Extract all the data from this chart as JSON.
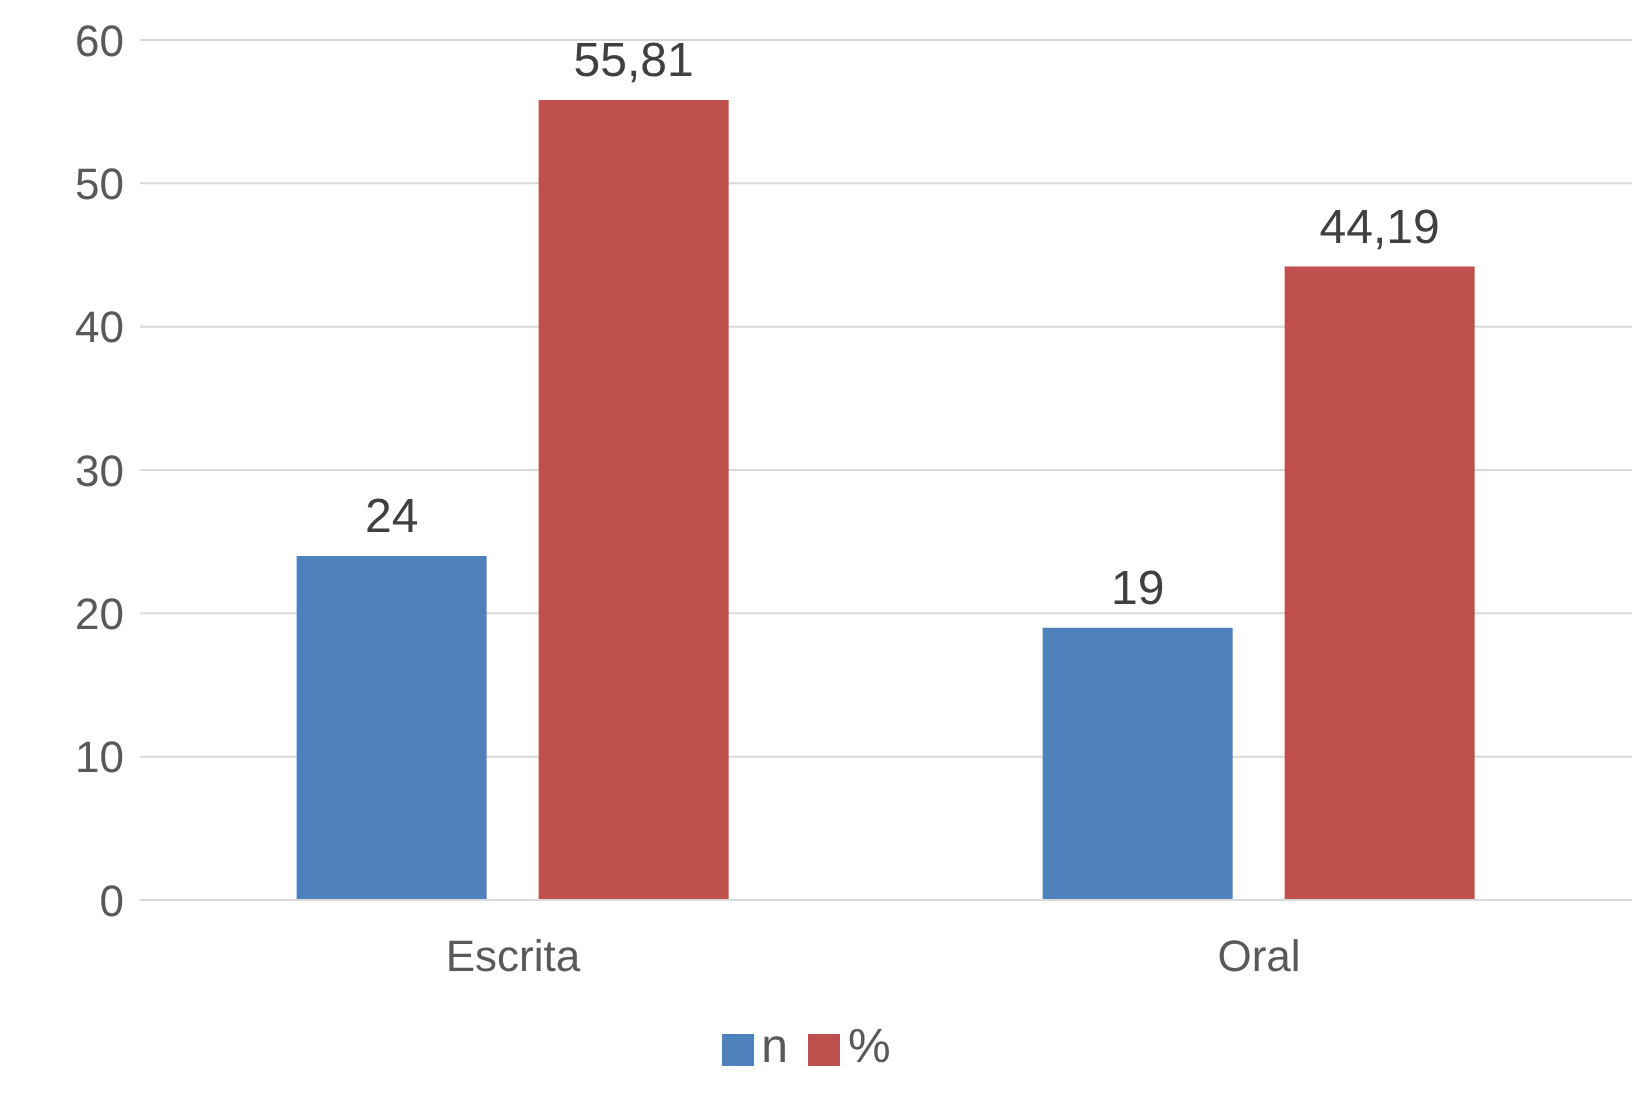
{
  "chart_data": {
    "type": "bar",
    "categories": [
      "Escrita",
      "Oral"
    ],
    "series": [
      {
        "name": "n",
        "color": "#4f81bd",
        "values": [
          24,
          19
        ],
        "value_labels": [
          "24",
          "19"
        ]
      },
      {
        "name": "%",
        "color": "#c0504d",
        "values": [
          55.81,
          44.19
        ],
        "value_labels": [
          "55,81",
          "44,19"
        ]
      }
    ],
    "ylim": [
      0,
      60
    ],
    "yticks": [
      0,
      10,
      20,
      30,
      40,
      50,
      60
    ],
    "grid": "y",
    "legend": "bottom"
  }
}
